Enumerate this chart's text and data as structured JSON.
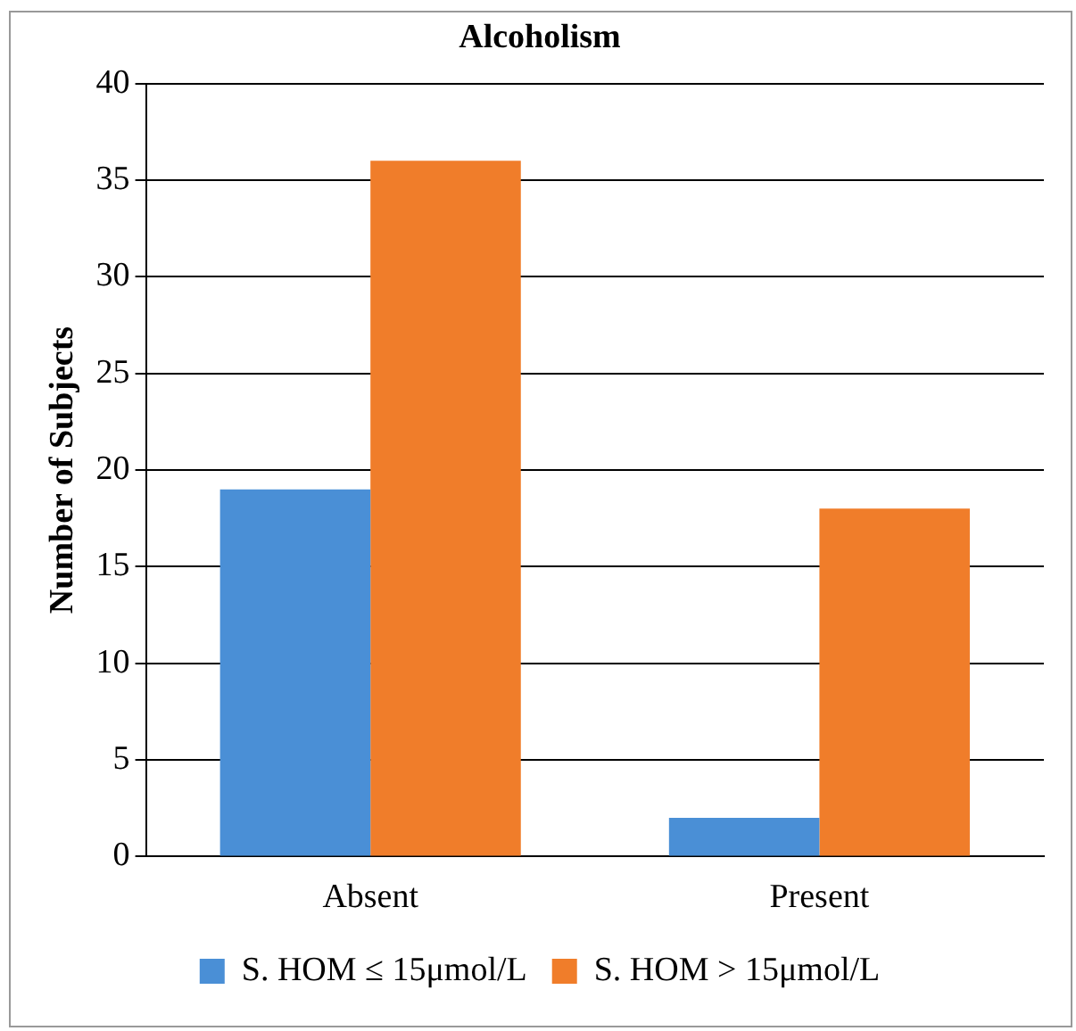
{
  "chart_data": {
    "type": "bar",
    "title": "Alcoholism",
    "ylabel": "Number of Subjects",
    "categories": [
      "Absent",
      "Present"
    ],
    "series": [
      {
        "name": "S. HOM ≤ 15μmol/L",
        "color": "#4a8fd6",
        "values": [
          19,
          2
        ]
      },
      {
        "name": "S. HOM > 15μmol/L",
        "color": "#f07d2a",
        "values": [
          36,
          18
        ]
      }
    ],
    "ylim": [
      0,
      40
    ],
    "yticks": [
      0,
      5,
      10,
      15,
      20,
      25,
      30,
      35,
      40
    ],
    "grid": "y",
    "legend": "bottom"
  }
}
